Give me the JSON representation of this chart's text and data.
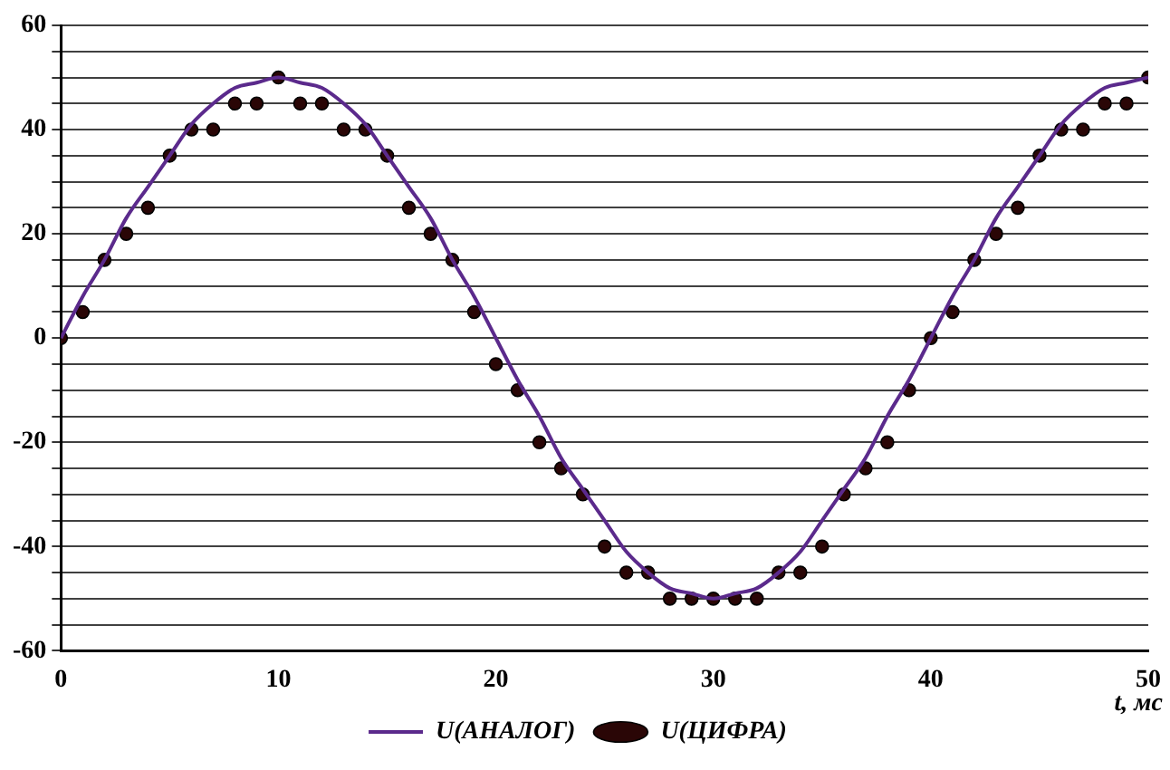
{
  "chart_data": {
    "type": "line",
    "xlabel": "t, мс",
    "xlim": [
      0,
      50
    ],
    "xticks": [
      0,
      10,
      20,
      30,
      40,
      50
    ],
    "ylim": [
      -60,
      60
    ],
    "yticks": [
      -60,
      {
        "value": -55,
        "label": null
      },
      {
        "value": -50,
        "label": null
      },
      {
        "value": -45,
        "label": null
      },
      -40,
      {
        "value": -35,
        "label": null
      },
      {
        "value": -30,
        "label": null
      },
      {
        "value": -25,
        "label": null
      },
      -20,
      {
        "value": -15,
        "label": null
      },
      {
        "value": -10,
        "label": null
      },
      {
        "value": -5,
        "label": null
      },
      0,
      {
        "value": 5,
        "label": null
      },
      {
        "value": 10,
        "label": null
      },
      {
        "value": 15,
        "label": null
      },
      20,
      {
        "value": 25,
        "label": null
      },
      {
        "value": 30,
        "label": null
      },
      {
        "value": 35,
        "label": null
      },
      40,
      {
        "value": 45,
        "label": null
      },
      {
        "value": 50,
        "label": null
      },
      {
        "value": 55,
        "label": null
      },
      60
    ],
    "x": [
      0,
      1,
      2,
      3,
      4,
      5,
      6,
      7,
      8,
      9,
      10,
      11,
      12,
      13,
      14,
      15,
      16,
      17,
      18,
      19,
      20,
      21,
      22,
      23,
      24,
      25,
      26,
      27,
      28,
      29,
      30,
      31,
      32,
      33,
      34,
      35,
      36,
      37,
      38,
      39,
      40,
      41,
      42,
      43,
      44,
      45,
      46,
      47,
      48,
      49,
      50
    ],
    "series": [
      {
        "name": "U(АНАЛОГ)",
        "color": "#5b2a8c",
        "marker": "none",
        "values": [
          0,
          8,
          15,
          23,
          29,
          35,
          41,
          45,
          48,
          49,
          50,
          49,
          48,
          45,
          41,
          35,
          29,
          23,
          15,
          8,
          0,
          -8,
          -15,
          -23,
          -29,
          -35,
          -41,
          -45,
          -48,
          -49,
          -50,
          -49,
          -48,
          -45,
          -41,
          -35,
          -29,
          -23,
          -15,
          -8,
          0,
          8,
          15,
          23,
          29,
          35,
          41,
          45,
          48,
          49,
          50
        ]
      },
      {
        "name": "U(ЦИФРА)",
        "type": "scatter",
        "color": "#2a0606",
        "marker": "circle",
        "values": [
          0,
          5,
          15,
          20,
          25,
          35,
          40,
          40,
          45,
          45,
          50,
          45,
          45,
          40,
          40,
          35,
          25,
          20,
          15,
          5,
          -5,
          -10,
          -20,
          -25,
          -30,
          -40,
          -45,
          -45,
          -50,
          -50,
          -50,
          -50,
          -50,
          -45,
          -45,
          -40,
          -30,
          -25,
          -20,
          -10,
          0,
          5,
          15,
          20,
          25,
          35,
          40,
          40,
          45,
          45,
          50
        ]
      }
    ],
    "grid": "y",
    "legend": "bottom"
  }
}
